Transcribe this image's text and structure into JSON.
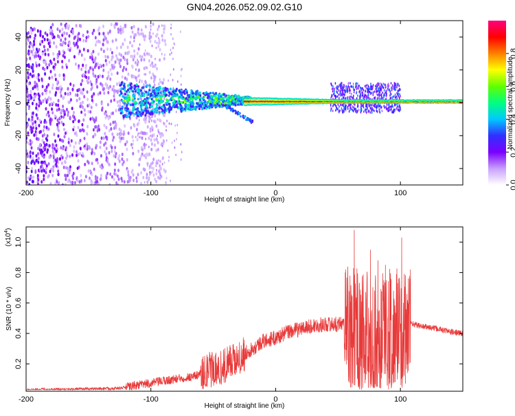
{
  "title": "GN04.2026.052.09.02.G10",
  "chart_data": [
    {
      "type": "heatmap",
      "name": "spectrogram",
      "xlabel": "Height of straight line (km)",
      "ylabel": "Frequency (Hz)",
      "xlim": [
        -200,
        150
      ],
      "ylim": [
        -50,
        50
      ],
      "xticks": [
        -200,
        -100,
        0,
        100
      ],
      "yticks": [
        -40,
        -20,
        0,
        20,
        40
      ],
      "colorbar": {
        "label": "Normalized spectral amplitude",
        "range": [
          0.0,
          1.0
        ],
        "ticks": [
          0.0,
          0.2,
          0.4,
          0.6,
          0.8
        ],
        "tick_labels": [
          "0.0",
          "0.2",
          "0.4",
          "0.6",
          "0.8"
        ],
        "colors": [
          "#ffffff",
          "#c8a0ff",
          "#7a00ff",
          "#3030ff",
          "#00c8ff",
          "#00ff80",
          "#60ff00",
          "#ffff00",
          "#ff8000",
          "#ff0000",
          "#ff0080"
        ]
      },
      "features": [
        {
          "description": "noise",
          "x_range": [
            -200,
            -110
          ],
          "freq_range": [
            -50,
            48
          ],
          "amplitude": 0.15
        },
        {
          "description": "converging band",
          "x_range": [
            -125,
            -20
          ],
          "freq_range": [
            -12,
            10
          ],
          "amplitude": 0.35
        },
        {
          "description": "main line",
          "x_range": [
            -20,
            150
          ],
          "freq_range": [
            0,
            1.5
          ],
          "amplitude": 0.95
        },
        {
          "description": "burst",
          "x_range": [
            44,
            100
          ],
          "freq_range": [
            -6,
            12
          ],
          "amplitude": 0.45
        }
      ]
    },
    {
      "type": "line",
      "name": "snr",
      "xlabel": "Height of straight line (km)",
      "ylabel": "SNR (10 * v/v)",
      "y_multiplier": "(x10",
      "y_multiplier_exp": "4",
      "y_multiplier_close": ")",
      "xlim": [
        -200,
        150
      ],
      "ylim": [
        0.02,
        1.1
      ],
      "xticks": [
        -200,
        -100,
        0,
        100
      ],
      "yticks": [
        0.2,
        0.4,
        0.6,
        0.8,
        1.0
      ],
      "ytick_labels": [
        "0.2",
        "0.4",
        "0.6",
        "0.8",
        "1.0"
      ],
      "color": "#e83a3a",
      "envelope": [
        {
          "x": -200,
          "y": 0.03
        },
        {
          "x": -150,
          "y": 0.035
        },
        {
          "x": -125,
          "y": 0.04
        },
        {
          "x": -110,
          "y": 0.06
        },
        {
          "x": -95,
          "y": 0.08
        },
        {
          "x": -80,
          "y": 0.1
        },
        {
          "x": -65,
          "y": 0.12
        },
        {
          "x": -50,
          "y": 0.17
        },
        {
          "x": -40,
          "y": 0.19
        },
        {
          "x": -35,
          "y": 0.23
        },
        {
          "x": -25,
          "y": 0.27
        },
        {
          "x": -15,
          "y": 0.32
        },
        {
          "x": -10,
          "y": 0.35
        },
        {
          "x": 0,
          "y": 0.37
        },
        {
          "x": 10,
          "y": 0.41
        },
        {
          "x": 20,
          "y": 0.43
        },
        {
          "x": 30,
          "y": 0.45
        },
        {
          "x": 40,
          "y": 0.46
        },
        {
          "x": 50,
          "y": 0.46
        },
        {
          "x": 54,
          "y": 0.47
        },
        {
          "x": 58,
          "y": 0.45
        },
        {
          "x": 70,
          "y": 0.42
        },
        {
          "x": 85,
          "y": 0.42
        },
        {
          "x": 100,
          "y": 0.43
        },
        {
          "x": 108,
          "y": 0.47
        },
        {
          "x": 115,
          "y": 0.45
        },
        {
          "x": 130,
          "y": 0.43
        },
        {
          "x": 140,
          "y": 0.41
        },
        {
          "x": 150,
          "y": 0.4
        }
      ],
      "noise_regions": [
        {
          "x_range": [
            -200,
            -120
          ],
          "amplitude": 0.01
        },
        {
          "x_range": [
            -120,
            -60
          ],
          "amplitude": 0.03
        },
        {
          "x_range": [
            -60,
            -25
          ],
          "amplitude": 0.12
        },
        {
          "x_range": [
            -25,
            55
          ],
          "amplitude": 0.05
        },
        {
          "x_range": [
            55,
            108
          ],
          "amplitude": 0.4
        },
        {
          "x_range": [
            108,
            150
          ],
          "amplitude": 0.02
        }
      ],
      "peaks": [
        {
          "x": 58,
          "y": 0.68
        },
        {
          "x": 60,
          "y": 0.05
        },
        {
          "x": 63,
          "y": 1.08
        },
        {
          "x": 67,
          "y": 0.72
        },
        {
          "x": 76,
          "y": 0.95
        },
        {
          "x": 79,
          "y": 0.05
        },
        {
          "x": 82,
          "y": 0.88
        },
        {
          "x": 88,
          "y": 0.85
        },
        {
          "x": 95,
          "y": 0.08
        },
        {
          "x": 101,
          "y": 1.03
        },
        {
          "x": 104,
          "y": 0.07
        },
        {
          "x": 108,
          "y": 0.82
        }
      ]
    }
  ]
}
